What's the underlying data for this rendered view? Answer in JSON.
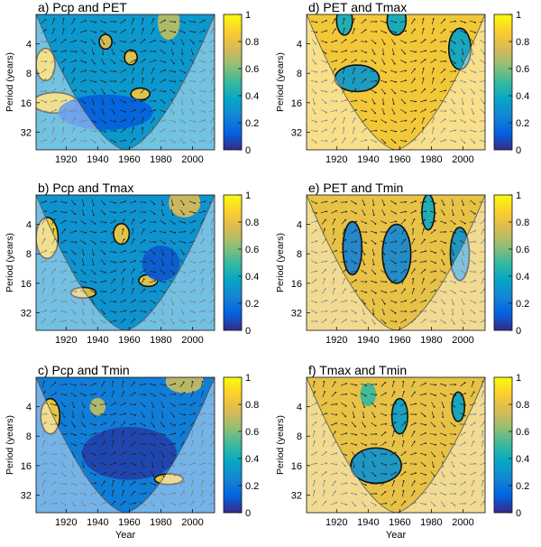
{
  "figure": {
    "colorbar_ticks": [
      "0",
      "0.2",
      "0.4",
      "0.6",
      "0.8",
      "1"
    ],
    "colormap": [
      "#352a87",
      "#0363e1",
      "#1485d4",
      "#06a7c6",
      "#38b99e",
      "#92bf73",
      "#d9ba56",
      "#fcce2e",
      "#f9fb0e"
    ],
    "cone_shade": "#ffffff",
    "contour_color": "#111111"
  },
  "chart_data": [
    {
      "type": "heatmap",
      "title": "a) Pcp and PET",
      "xlabel": "",
      "ylabel": "Period (years)",
      "x_ticks": [
        "1920",
        "1940",
        "1960",
        "1980",
        "2000"
      ],
      "y_ticks": [
        "4",
        "8",
        "16",
        "32"
      ],
      "xlim": [
        1901,
        2014
      ],
      "ylim_log2": [
        1,
        5.6
      ],
      "clim": [
        0,
        1
      ],
      "background_level": 0.32,
      "grid": false,
      "regions": [
        {
          "x": 1907,
          "period": 6.5,
          "rx_years": 6,
          "ry_oct": 0.55,
          "level": 0.88
        },
        {
          "x": 1913,
          "period": 16,
          "rx_years": 14,
          "ry_oct": 0.35,
          "level": 0.86
        },
        {
          "x": 1945,
          "period": 3.8,
          "rx_years": 4,
          "ry_oct": 0.25,
          "level": 0.78
        },
        {
          "x": 1961,
          "period": 5.5,
          "rx_years": 4,
          "ry_oct": 0.25,
          "level": 0.82
        },
        {
          "x": 1967,
          "period": 13,
          "rx_years": 6,
          "ry_oct": 0.2,
          "level": 0.84
        },
        {
          "x": 1985,
          "period": 2.4,
          "rx_years": 7,
          "ry_oct": 0.6,
          "level": 0.7
        },
        {
          "x": 1945,
          "period": 20,
          "rx_years": 30,
          "ry_oct": 0.6,
          "level": 0.12
        }
      ]
    },
    {
      "type": "heatmap",
      "title": "b) Pcp and Tmax",
      "xlabel": "",
      "ylabel": "Period (years)",
      "x_ticks": [
        "1920",
        "1940",
        "1960",
        "1980",
        "2000"
      ],
      "y_ticks": [
        "4",
        "8",
        "16",
        "32"
      ],
      "xlim": [
        1901,
        2014
      ],
      "ylim_log2": [
        1,
        5.6
      ],
      "clim": [
        0,
        1
      ],
      "background_level": 0.3,
      "grid": false,
      "regions": [
        {
          "x": 1908,
          "period": 5.5,
          "rx_years": 7,
          "ry_oct": 0.7,
          "level": 0.86
        },
        {
          "x": 1955,
          "period": 5,
          "rx_years": 5,
          "ry_oct": 0.35,
          "level": 0.84
        },
        {
          "x": 1972,
          "period": 15,
          "rx_years": 6,
          "ry_oct": 0.2,
          "level": 0.82
        },
        {
          "x": 1931,
          "period": 20,
          "rx_years": 8,
          "ry_oct": 0.18,
          "level": 0.8
        },
        {
          "x": 1995,
          "period": 2.4,
          "rx_years": 10,
          "ry_oct": 0.5,
          "level": 0.75
        },
        {
          "x": 1980,
          "period": 10,
          "rx_years": 12,
          "ry_oct": 0.6,
          "level": 0.1
        }
      ]
    },
    {
      "type": "heatmap",
      "title": "c) Pcp and Tmin",
      "xlabel": "Year",
      "ylabel": "Period (years)",
      "x_ticks": [
        "1920",
        "1940",
        "1960",
        "1980",
        "2000"
      ],
      "y_ticks": [
        "4",
        "8",
        "16",
        "32"
      ],
      "xlim": [
        1901,
        2014
      ],
      "ylim_log2": [
        1,
        5.6
      ],
      "clim": [
        0,
        1
      ],
      "background_level": 0.22,
      "grid": false,
      "regions": [
        {
          "x": 1910,
          "period": 5,
          "rx_years": 6,
          "ry_oct": 0.6,
          "level": 0.86
        },
        {
          "x": 1940,
          "period": 4,
          "rx_years": 5,
          "ry_oct": 0.3,
          "level": 0.7
        },
        {
          "x": 1985,
          "period": 22,
          "rx_years": 9,
          "ry_oct": 0.18,
          "level": 0.84
        },
        {
          "x": 1960,
          "period": 12,
          "rx_years": 30,
          "ry_oct": 0.9,
          "level": 0.05
        },
        {
          "x": 1995,
          "period": 2.2,
          "rx_years": 12,
          "ry_oct": 0.4,
          "level": 0.72
        }
      ]
    },
    {
      "type": "heatmap",
      "title": "d) PET and Tmax",
      "xlabel": "",
      "ylabel": "Period (years)",
      "x_ticks": [
        "1920",
        "1940",
        "1960",
        "1980",
        "2000"
      ],
      "y_ticks": [
        "4",
        "8",
        "16",
        "32"
      ],
      "xlim": [
        1901,
        2014
      ],
      "ylim_log2": [
        1,
        5.6
      ],
      "clim": [
        0,
        1
      ],
      "background_level": 0.84,
      "grid": false,
      "regions": [
        {
          "x": 1933,
          "period": 9,
          "rx_years": 14,
          "ry_oct": 0.45,
          "level": 0.32
        },
        {
          "x": 1925,
          "period": 2.3,
          "rx_years": 5,
          "ry_oct": 0.5,
          "level": 0.4
        },
        {
          "x": 1958,
          "period": 2.3,
          "rx_years": 6,
          "ry_oct": 0.5,
          "level": 0.38
        },
        {
          "x": 1998,
          "period": 4.5,
          "rx_years": 7,
          "ry_oct": 0.7,
          "level": 0.36
        }
      ]
    },
    {
      "type": "heatmap",
      "title": "e) PET and Tmin",
      "xlabel": "",
      "ylabel": "Period (years)",
      "x_ticks": [
        "1920",
        "1940",
        "1960",
        "1980",
        "2000"
      ],
      "y_ticks": [
        "4",
        "8",
        "16",
        "32"
      ],
      "xlim": [
        1901,
        2014
      ],
      "ylim_log2": [
        1,
        5.6
      ],
      "clim": [
        0,
        1
      ],
      "background_level": 0.8,
      "grid": false,
      "regions": [
        {
          "x": 1930,
          "period": 7,
          "rx_years": 6,
          "ry_oct": 0.9,
          "level": 0.24
        },
        {
          "x": 1958,
          "period": 8,
          "rx_years": 9,
          "ry_oct": 1.0,
          "level": 0.26
        },
        {
          "x": 1998,
          "period": 8,
          "rx_years": 6,
          "ry_oct": 0.9,
          "level": 0.3
        },
        {
          "x": 1978,
          "period": 3,
          "rx_years": 4,
          "ry_oct": 0.6,
          "level": 0.4
        }
      ]
    },
    {
      "type": "heatmap",
      "title": "f) Tmax and Tmin",
      "xlabel": "Year",
      "ylabel": "Period (years)",
      "x_ticks": [
        "1920",
        "1940",
        "1960",
        "1980",
        "2000"
      ],
      "y_ticks": [
        "4",
        "8",
        "16",
        "32"
      ],
      "xlim": [
        1901,
        2014
      ],
      "ylim_log2": [
        1,
        5.6
      ],
      "clim": [
        0,
        1
      ],
      "background_level": 0.8,
      "grid": false,
      "regions": [
        {
          "x": 1945,
          "period": 16,
          "rx_years": 16,
          "ry_oct": 0.6,
          "level": 0.3
        },
        {
          "x": 1960,
          "period": 5,
          "rx_years": 5,
          "ry_oct": 0.6,
          "level": 0.34
        },
        {
          "x": 1997,
          "period": 4,
          "rx_years": 4,
          "ry_oct": 0.5,
          "level": 0.36
        },
        {
          "x": 1940,
          "period": 3,
          "rx_years": 5,
          "ry_oct": 0.4,
          "level": 0.5
        }
      ]
    }
  ]
}
